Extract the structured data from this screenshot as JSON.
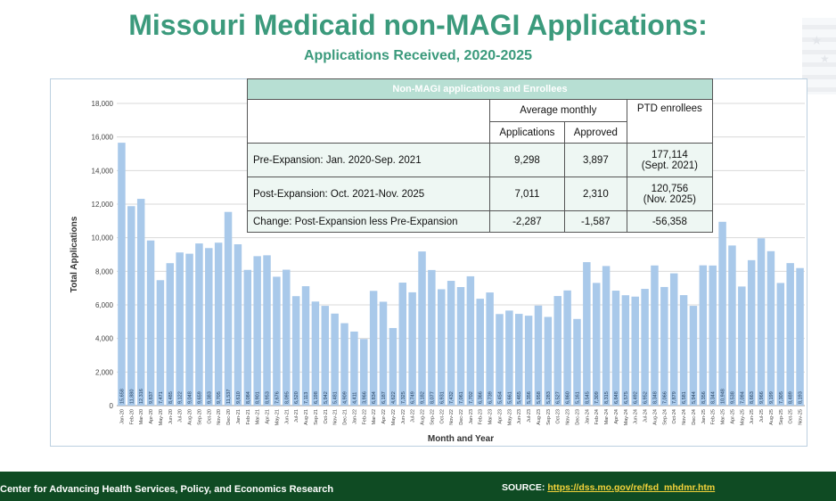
{
  "header": {
    "title": "Missouri Medicaid non-MAGI Applications:",
    "subtitle": "Applications Received, 2020-2025"
  },
  "table": {
    "title": "Non-MAGI applications and Enrollees",
    "group_header": "Average monthly",
    "col_applications": "Applications",
    "col_approved": "Approved",
    "col_ptd": "PTD enrollees",
    "rows": [
      {
        "label": "Pre-Expansion:  Jan. 2020-Sep. 2021",
        "applications": "9,298",
        "approved": "3,897",
        "ptd_value": "177,114",
        "ptd_note": "(Sept. 2021)"
      },
      {
        "label": "Post-Expansion:  Oct. 2021-Nov. 2025",
        "applications": "7,011",
        "approved": "2,310",
        "ptd_value": "120,756",
        "ptd_note": "(Nov. 2025)"
      },
      {
        "label": "Change: Post-Expansion less Pre-Expansion",
        "applications": "-2,287",
        "approved": "-1,587",
        "ptd_value": "-56,358",
        "ptd_note": ""
      }
    ]
  },
  "chart_data": {
    "type": "bar",
    "xlabel": "Month and Year",
    "ylabel": "Total Applications",
    "ylim": [
      0,
      18000
    ],
    "yticks": [
      0,
      2000,
      4000,
      6000,
      8000,
      10000,
      12000,
      14000,
      16000,
      18000
    ],
    "ytick_labels": [
      "0",
      "2,000",
      "4,000",
      "6,000",
      "8,000",
      "10,000",
      "12,000",
      "14,000",
      "16,000",
      "18,000"
    ],
    "bar_color": "#a9c9ea",
    "categories": [
      "Jan-20",
      "Feb-20",
      "Mar-20",
      "Apr-20",
      "May-20",
      "Jun-20",
      "Jul-20",
      "Aug-20",
      "Sep-20",
      "Oct-20",
      "Nov-20",
      "Dec-20",
      "Jan-21",
      "Feb-21",
      "Mar-21",
      "Apr-21",
      "May-21",
      "Jun-21",
      "Jul-21",
      "Aug-21",
      "Sep-21",
      "Oct-21",
      "Nov-21",
      "Dec-21",
      "Jan-22",
      "Feb-22",
      "Mar-22",
      "Apr-22",
      "May-22",
      "Jun-22",
      "Jul-22",
      "Aug-22",
      "Sep-22",
      "Oct-22",
      "Nov-22",
      "Dec-22",
      "Jan-23",
      "Feb-23",
      "Mar-23",
      "Apr-23",
      "May-23",
      "Jun-23",
      "Jul-23",
      "Aug-23",
      "Sep-23",
      "Oct-23",
      "Nov-23",
      "Dec-23",
      "Jan-24",
      "Feb-24",
      "Mar-24",
      "Apr-24",
      "May-24",
      "Jun-24",
      "Jul-24",
      "Aug-24",
      "Sep-24",
      "Oct-24",
      "Nov-24",
      "Dec-24",
      "Jan-25",
      "Feb-25",
      "Mar-25",
      "Apr-25",
      "May-25",
      "Jun-25",
      "Jul-25",
      "Aug-25",
      "Sep-25",
      "Oct-25",
      "Nov-25"
    ],
    "values": [
      15658,
      11880,
      12316,
      9837,
      7471,
      8485,
      9122,
      9048,
      9659,
      9383,
      9705,
      11537,
      9610,
      8084,
      8901,
      8953,
      7676,
      8095,
      6520,
      7113,
      6198,
      5942,
      5481,
      4909,
      4411,
      3966,
      6834,
      6187,
      4622,
      7325,
      6749,
      9182,
      8077,
      6931,
      7432,
      7061,
      7702,
      6366,
      6739,
      5454,
      5661,
      5465,
      5356,
      5958,
      5283,
      6527,
      6860,
      5161,
      8545,
      7309,
      8315,
      6848,
      6575,
      6492,
      6952,
      8348,
      7066,
      7879,
      6581,
      5944,
      8356,
      8344,
      10948,
      9538,
      7094,
      8663,
      9966,
      9199,
      7305,
      8489,
      8193
    ],
    "value_labels": [
      "15,658",
      "11,880",
      "12,316",
      "9,837",
      "7,471",
      "8,485",
      "9,122",
      "9,048",
      "9,659",
      "9,383",
      "9,705",
      "11,537",
      "9,610",
      "8,084",
      "8,901",
      "8,953",
      "7,676",
      "8,095",
      "6,520",
      "7,113",
      "6,198",
      "5,942",
      "5,481",
      "4,909",
      "4,411",
      "3,966",
      "6,834",
      "6,187",
      "4,622",
      "7,325",
      "6,749",
      "9,182",
      "8,077",
      "6,931",
      "7,432",
      "7,061",
      "7,702",
      "6,366",
      "6,739",
      "5,454",
      "5,661",
      "5,465",
      "5,356",
      "5,958",
      "5,283",
      "6,527",
      "6,860",
      "5,161",
      "8,545",
      "7,309",
      "8,315",
      "6,848",
      "6,575",
      "6,492",
      "6,952",
      "8,348",
      "7,066",
      "7,879",
      "6,581",
      "5,944",
      "8,356",
      "8,344",
      "10,948",
      "9,538",
      "7,094",
      "8,663",
      "9,966",
      "9,199",
      "7,305",
      "8,489",
      "8,193"
    ]
  },
  "footer": {
    "left_text": "Center for Advancing Health Services, Policy, and Economics Research",
    "source_label": "SOURCE: ",
    "source_url": "https://dss.mo.gov/re/fsd_mhdmr.htm"
  }
}
